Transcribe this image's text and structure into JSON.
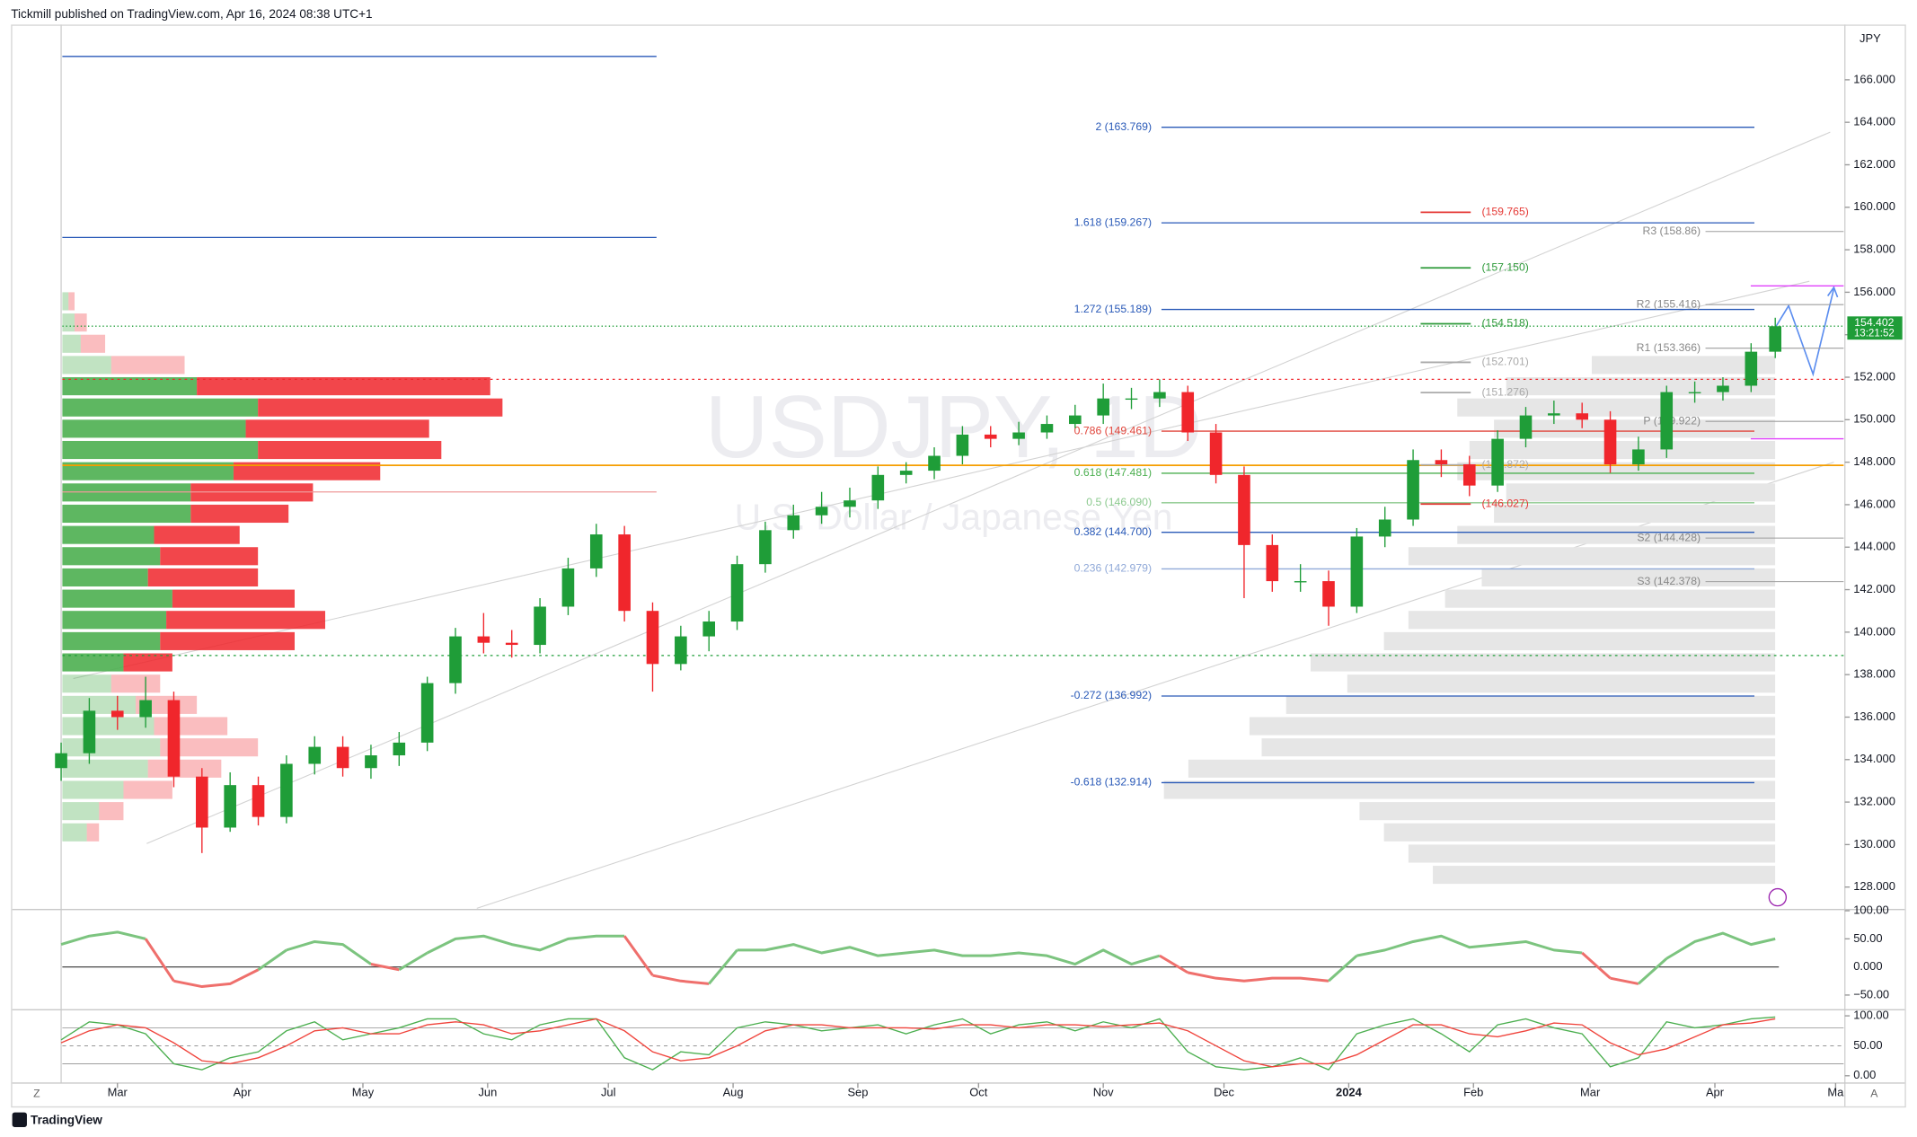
{
  "header": {
    "text": "Tickmill published on TradingView.com, Apr 16, 2024 08:38 UTC+1"
  },
  "footer": {
    "brand": "TradingView"
  },
  "chart_data": [
    {
      "type": "candlestick",
      "title": "USDJPY, 1D",
      "subtitle": "U.S. Dollar / Japanese Yen",
      "currency": "JPY",
      "up_color": "#1f9d38",
      "down_color": "#f0262c",
      "xlim": [
        0,
        443
      ],
      "xticks": [
        {
          "value": 14,
          "label": "Mar"
        },
        {
          "value": 45,
          "label": "Apr"
        },
        {
          "value": 75,
          "label": "May"
        },
        {
          "value": 106,
          "label": "Jun"
        },
        {
          "value": 136,
          "label": "Jul"
        },
        {
          "value": 167,
          "label": "Aug"
        },
        {
          "value": 198,
          "label": "Sep"
        },
        {
          "value": 228,
          "label": "Oct"
        },
        {
          "value": 259,
          "label": "Nov"
        },
        {
          "value": 289,
          "label": "Dec"
        },
        {
          "value": 320,
          "label": "2024"
        },
        {
          "value": 351,
          "label": "Feb"
        },
        {
          "value": 380,
          "label": "Mar"
        },
        {
          "value": 411,
          "label": "Apr"
        },
        {
          "value": 441,
          "label": "Ma"
        }
      ],
      "ylim": [
        127.0,
        168.6
      ],
      "yticks": [
        {
          "value": 128,
          "label": "128.000"
        },
        {
          "value": 130,
          "label": "130.000"
        },
        {
          "value": 132,
          "label": "132.000"
        },
        {
          "value": 134,
          "label": "134.000"
        },
        {
          "value": 136,
          "label": "136.000"
        },
        {
          "value": 138,
          "label": "138.000"
        },
        {
          "value": 140,
          "label": "140.000"
        },
        {
          "value": 142,
          "label": "142.000"
        },
        {
          "value": 144,
          "label": "144.000"
        },
        {
          "value": 146,
          "label": "146.000"
        },
        {
          "value": 148,
          "label": "148.000"
        },
        {
          "value": 150,
          "label": "150.000"
        },
        {
          "value": 152,
          "label": "152.000"
        },
        {
          "value": 154,
          "label": "154.000"
        },
        {
          "value": 156,
          "label": "156.000"
        },
        {
          "value": 158,
          "label": "158.000"
        },
        {
          "value": 160,
          "label": "160.000"
        },
        {
          "value": 162,
          "label": "162.000"
        },
        {
          "value": 164,
          "label": "164.000"
        },
        {
          "value": 166,
          "label": "166.000"
        }
      ],
      "x": [
        0,
        7,
        14,
        21,
        28,
        35,
        42,
        49,
        56,
        63,
        70,
        77,
        84,
        91,
        98,
        105,
        112,
        119,
        126,
        133,
        140,
        147,
        154,
        161,
        168,
        175,
        182,
        189,
        196,
        203,
        210,
        217,
        224,
        231,
        238,
        245,
        252,
        259,
        266,
        273,
        280,
        287,
        294,
        301,
        308,
        315,
        322,
        329,
        336,
        343,
        350,
        357,
        364,
        371,
        378,
        385,
        392,
        399,
        406,
        413,
        420,
        426
      ],
      "open": [
        133.6,
        134.3,
        136.3,
        136.0,
        136.8,
        133.2,
        130.8,
        132.8,
        131.3,
        133.8,
        134.6,
        133.6,
        134.2,
        134.8,
        137.6,
        139.8,
        139.5,
        139.4,
        141.2,
        143.0,
        144.6,
        141.0,
        138.5,
        139.8,
        140.5,
        143.2,
        144.8,
        145.5,
        145.9,
        146.2,
        147.4,
        147.6,
        148.3,
        149.3,
        149.1,
        149.4,
        149.8,
        150.2,
        151.0,
        151.0,
        151.3,
        149.4,
        147.4,
        144.1,
        142.4,
        142.4,
        141.2,
        144.5,
        145.3,
        148.1,
        147.9,
        146.9,
        149.1,
        150.2,
        150.3,
        150.0,
        147.9,
        148.6,
        151.3,
        151.3,
        151.6,
        153.2
      ],
      "high": [
        134.8,
        136.9,
        137.0,
        137.9,
        137.2,
        133.6,
        133.4,
        133.2,
        134.2,
        135.1,
        135.1,
        134.7,
        135.3,
        137.9,
        140.2,
        140.9,
        140.1,
        141.6,
        143.5,
        145.1,
        145.0,
        141.4,
        140.3,
        141.0,
        143.6,
        145.2,
        146.0,
        146.6,
        146.8,
        147.8,
        148.0,
        148.7,
        149.7,
        149.7,
        149.9,
        150.2,
        150.7,
        151.7,
        151.5,
        151.9,
        151.6,
        149.8,
        147.8,
        144.6,
        143.2,
        142.9,
        144.9,
        145.9,
        148.6,
        148.6,
        148.3,
        149.5,
        150.6,
        150.9,
        150.8,
        150.4,
        149.2,
        151.6,
        151.8,
        152.0,
        153.6,
        154.8
      ],
      "low": [
        133.0,
        133.8,
        135.4,
        135.5,
        132.7,
        129.6,
        130.6,
        130.9,
        131.0,
        133.3,
        133.2,
        133.1,
        133.7,
        134.4,
        137.1,
        139.0,
        138.8,
        139.0,
        140.8,
        142.6,
        140.5,
        137.2,
        138.2,
        139.1,
        140.1,
        142.8,
        144.4,
        145.1,
        145.4,
        145.8,
        147.0,
        147.2,
        147.9,
        148.7,
        148.8,
        149.1,
        149.6,
        149.8,
        150.5,
        150.6,
        149.0,
        147.0,
        141.6,
        141.9,
        141.9,
        140.3,
        140.9,
        144.0,
        145.0,
        147.3,
        146.4,
        146.6,
        148.7,
        149.8,
        149.6,
        147.5,
        147.6,
        148.2,
        150.8,
        150.9,
        151.3,
        152.9
      ],
      "close": [
        134.3,
        136.3,
        136.0,
        136.8,
        133.2,
        130.8,
        132.8,
        131.3,
        133.8,
        134.6,
        133.6,
        134.2,
        134.8,
        137.6,
        139.8,
        139.5,
        139.4,
        141.2,
        143.0,
        144.6,
        141.0,
        138.5,
        139.8,
        140.5,
        143.2,
        144.8,
        145.5,
        145.9,
        146.2,
        147.4,
        147.6,
        148.3,
        149.3,
        149.1,
        149.4,
        149.8,
        150.2,
        151.0,
        151.0,
        151.3,
        149.4,
        147.4,
        144.1,
        142.4,
        142.4,
        141.2,
        144.5,
        145.3,
        148.1,
        147.9,
        146.9,
        149.1,
        150.2,
        150.3,
        150.0,
        147.9,
        148.6,
        151.3,
        151.3,
        151.6,
        153.2,
        154.4
      ],
      "last_price": 154.402,
      "countdown": "13:21:52",
      "fib_levels": [
        {
          "label": "2 (163.769)",
          "value": 163.769,
          "color": "#2a5ab8"
        },
        {
          "label": "1.618 (159.267)",
          "value": 159.267,
          "color": "#2a5ab8"
        },
        {
          "label": "1.272 (155.189)",
          "value": 155.189,
          "color": "#2a5ab8"
        },
        {
          "label": "0.786 (149.461)",
          "value": 149.461,
          "color": "#e0443a"
        },
        {
          "label": "0.618 (147.481)",
          "value": 147.481,
          "color": "#4caf50"
        },
        {
          "label": "0.5 (146.090)",
          "value": 146.09,
          "color": "#8bc98e"
        },
        {
          "label": "0.382 (144.700)",
          "value": 144.7,
          "color": "#2a5ab8"
        },
        {
          "label": "0.236 (142.979)",
          "value": 142.979,
          "color": "#90a9d8"
        },
        {
          "label": "-0.272 (136.992)",
          "value": 136.992,
          "color": "#2a5ab8"
        },
        {
          "label": "-0.618 (132.914)",
          "value": 132.914,
          "color": "#2a5ab8"
        }
      ],
      "targets": [
        {
          "label": "(159.765)",
          "value": 159.765,
          "color": "#e53935"
        },
        {
          "label": "(157.150)",
          "value": 157.15,
          "color": "#2e9a3a"
        },
        {
          "label": "(154.518)",
          "value": 154.518,
          "color": "#2e9a3a"
        },
        {
          "label": "(152.701)",
          "value": 152.701,
          "color": "#aaaaaa"
        },
        {
          "label": "(151.276)",
          "value": 151.276,
          "color": "#aaaaaa"
        },
        {
          "label": "(147.872)",
          "value": 147.872,
          "color": "#aaaaaa"
        },
        {
          "label": "(146.027)",
          "value": 146.027,
          "color": "#e53935"
        }
      ],
      "pivots": [
        {
          "label": "R3 (158.86)",
          "value": 158.86
        },
        {
          "label": "R2 (155.416)",
          "value": 155.416
        },
        {
          "label": "R1 (153.366)",
          "value": 153.366
        },
        {
          "label": "P (149.922)",
          "value": 149.922
        },
        {
          "label": "S2 (144.428)",
          "value": 144.428
        },
        {
          "label": "S3 (142.378)",
          "value": 142.378
        }
      ],
      "hlines": [
        {
          "value": 167.1,
          "color": "#2a5ab8"
        },
        {
          "value": 158.58,
          "color": "#2a5ab8"
        },
        {
          "value": 146.6,
          "color": "#ef9a9a"
        },
        {
          "value": 147.85,
          "color": "#f59d00"
        },
        {
          "value": 156.3,
          "color": "#e040fb"
        },
        {
          "value": 149.1,
          "color": "#e040fb"
        }
      ],
      "value_area": {
        "low": 138.9,
        "high": 151.9
      },
      "volume_profile": {
        "rows": [
          130,
          131,
          132,
          133,
          134,
          135,
          136,
          137,
          138,
          139,
          140,
          141,
          142,
          143,
          144,
          145,
          146,
          147,
          148,
          149,
          150,
          151,
          152,
          153,
          154,
          155
        ],
        "buy": [
          20,
          30,
          50,
          70,
          80,
          75,
          60,
          40,
          50,
          80,
          85,
          90,
          70,
          80,
          75,
          105,
          105,
          140,
          160,
          150,
          160,
          110,
          40,
          15,
          10,
          5
        ],
        "sell": [
          10,
          20,
          40,
          60,
          80,
          60,
          50,
          40,
          40,
          110,
          130,
          100,
          90,
          80,
          70,
          80,
          100,
          120,
          150,
          150,
          200,
          240,
          60,
          20,
          10,
          5
        ]
      },
      "session_profile": {
        "rows": [
          128,
          129,
          130,
          131,
          132,
          133,
          134,
          135,
          136,
          137,
          138,
          139,
          140,
          141,
          142,
          143,
          144,
          145,
          146,
          147,
          148,
          149,
          150,
          151,
          152
        ],
        "volume": [
          280,
          300,
          320,
          340,
          500,
          480,
          420,
          430,
          400,
          350,
          380,
          320,
          300,
          270,
          240,
          300,
          260,
          230,
          220,
          260,
          250,
          230,
          260,
          220,
          150
        ]
      }
    },
    {
      "type": "line",
      "color_up": "#7cc47f",
      "color_down": "#ef6f6c",
      "ylim": [
        -74,
        100
      ],
      "yticks": [
        {
          "value": -50,
          "label": "−50.00"
        },
        {
          "value": 0,
          "label": "0.000"
        },
        {
          "value": 50,
          "label": "50.00"
        },
        {
          "value": 100,
          "label": "100.00"
        }
      ],
      "values": [
        40,
        55,
        62,
        50,
        -25,
        -35,
        -30,
        -5,
        30,
        45,
        40,
        5,
        -5,
        25,
        50,
        55,
        40,
        30,
        50,
        55,
        55,
        -15,
        -25,
        -30,
        30,
        30,
        40,
        25,
        35,
        20,
        25,
        30,
        20,
        20,
        25,
        20,
        5,
        30,
        5,
        20,
        -10,
        -20,
        -25,
        -20,
        -20,
        -25,
        20,
        30,
        45,
        55,
        35,
        40,
        45,
        30,
        25,
        -20,
        -30,
        15,
        45,
        60,
        40,
        50
      ]
    },
    {
      "type": "line",
      "ylim": [
        -10.2,
        106.1
      ],
      "yticks": [
        {
          "value": 0,
          "label": "0.00"
        },
        {
          "value": 50,
          "label": "50.00"
        },
        {
          "value": 100,
          "label": "100.00"
        }
      ],
      "bands": [
        80,
        20
      ],
      "series": [
        {
          "color": "#4caf50",
          "values": [
            60,
            90,
            85,
            70,
            20,
            10,
            30,
            40,
            75,
            90,
            60,
            70,
            80,
            95,
            95,
            70,
            60,
            85,
            95,
            95,
            30,
            10,
            40,
            35,
            80,
            90,
            85,
            75,
            80,
            85,
            70,
            85,
            95,
            70,
            85,
            90,
            75,
            90,
            80,
            95,
            40,
            15,
            10,
            15,
            30,
            10,
            70,
            85,
            95,
            70,
            40,
            85,
            95,
            80,
            70,
            15,
            30,
            90,
            80,
            85,
            95,
            98
          ]
        },
        {
          "color": "#f0443c",
          "values": [
            55,
            75,
            85,
            80,
            55,
            25,
            20,
            30,
            50,
            75,
            80,
            70,
            70,
            85,
            90,
            85,
            70,
            75,
            85,
            95,
            75,
            40,
            25,
            30,
            50,
            75,
            85,
            85,
            80,
            80,
            80,
            78,
            85,
            85,
            80,
            85,
            85,
            82,
            85,
            88,
            75,
            50,
            25,
            15,
            20,
            20,
            35,
            60,
            85,
            85,
            70,
            65,
            75,
            88,
            85,
            55,
            35,
            45,
            65,
            85,
            88,
            95
          ]
        }
      ]
    }
  ]
}
